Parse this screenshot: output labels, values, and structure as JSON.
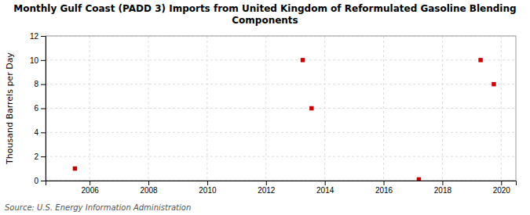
{
  "chart_data": {
    "type": "scatter",
    "title": "Monthly Gulf Coast (PADD 3) Imports from United Kingdom of Reformulated Gasoline Blending\nComponents",
    "ylabel": "Thousand Barrels per Day",
    "source": "Source: U.S. Energy Information Administration",
    "x": [
      2005.5,
      2013.25,
      2013.55,
      2017.2,
      2019.3,
      2019.75
    ],
    "values": [
      1,
      10,
      6,
      0.1,
      10,
      8
    ],
    "color": "#cc0000",
    "marker": "square",
    "xlim": [
      2004.5,
      2020.5
    ],
    "ylim": [
      0,
      12
    ],
    "xticks": [
      2006,
      2008,
      2010,
      2012,
      2014,
      2016,
      2018,
      2020
    ],
    "yticks": [
      0,
      2,
      4,
      6,
      8,
      10,
      12
    ],
    "grid": true
  }
}
